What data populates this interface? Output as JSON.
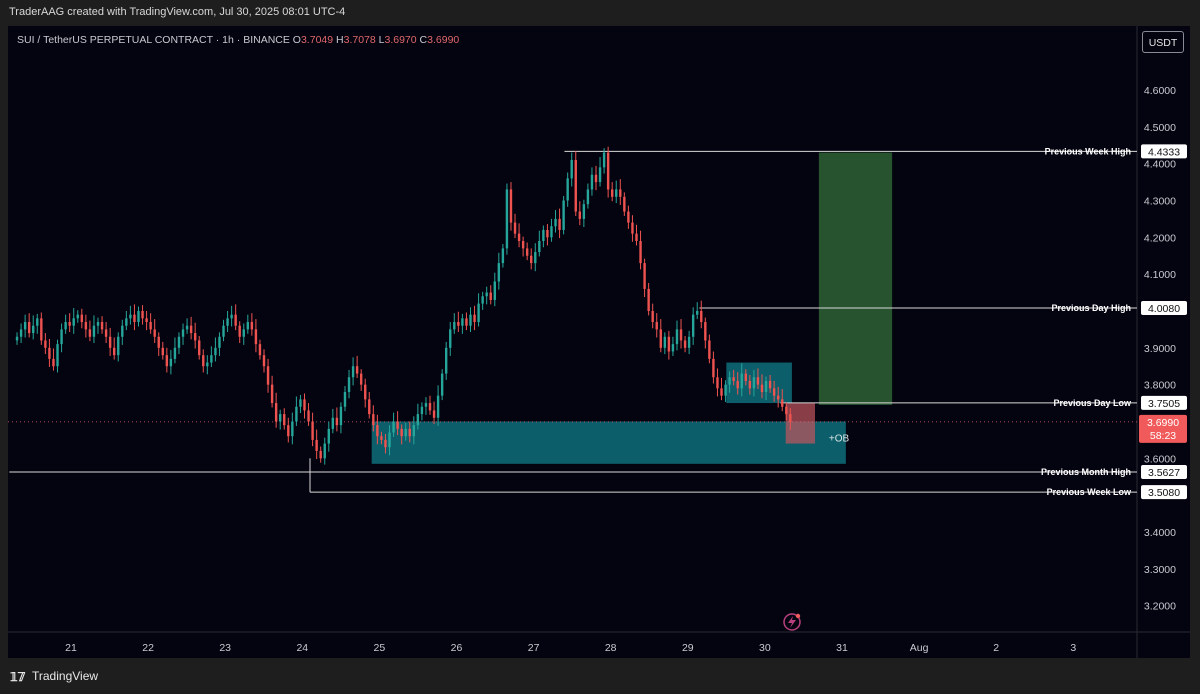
{
  "header": {
    "credit": "TraderAAG created with TradingView.com, Jul 30, 2025 08:01 UTC-4"
  },
  "legend": {
    "symbol": "SUI / TetherUS PERPETUAL CONTRACT · 1h · BINANCE",
    "o_label": "O",
    "o": "3.7049",
    "h_label": "H",
    "h": "3.7078",
    "l_label": "L",
    "l": "3.6970",
    "c_label": "C",
    "c": "3.6990"
  },
  "currency_button": "USDT",
  "footer": {
    "brand": "TradingView",
    "logo_icon": "tradingview-logo-icon"
  },
  "colors": {
    "up": "#26a69a",
    "down": "#ef5350",
    "background": "#040410",
    "ob_zone": "#0e6f7a",
    "target_zone": "#2b5d33",
    "price_tag": "#f05a5a"
  },
  "chart_data": {
    "type": "candlestick",
    "timeframe": "1h",
    "y_ticks": [
      "4.6000",
      "4.5000",
      "4.4000",
      "4.3000",
      "4.2000",
      "4.1000",
      "4.0000",
      "3.9000",
      "3.8000",
      "3.7000",
      "3.6000",
      "3.5000",
      "3.4000",
      "3.3000",
      "3.2000"
    ],
    "x_ticks": [
      "21",
      "22",
      "23",
      "24",
      "25",
      "26",
      "27",
      "28",
      "29",
      "30",
      "31",
      "Aug",
      "2",
      "3"
    ],
    "ylim": [
      3.15,
      4.65
    ],
    "close_series_hourly_approx": [
      3.93,
      3.95,
      3.97,
      3.94,
      3.96,
      3.98,
      3.92,
      3.9,
      3.87,
      3.85,
      3.91,
      3.95,
      3.97,
      3.96,
      3.98,
      3.99,
      3.97,
      3.95,
      3.93,
      3.96,
      3.97,
      3.95,
      3.93,
      3.9,
      3.88,
      3.93,
      3.96,
      3.98,
      3.99,
      3.97,
      4.0,
      3.98,
      3.97,
      3.95,
      3.93,
      3.9,
      3.88,
      3.85,
      3.87,
      3.9,
      3.93,
      3.95,
      3.96,
      3.94,
      3.92,
      3.88,
      3.85,
      3.86,
      3.88,
      3.9,
      3.93,
      3.96,
      3.98,
      3.99,
      3.96,
      3.93,
      3.95,
      3.97,
      3.95,
      3.91,
      3.88,
      3.85,
      3.8,
      3.75,
      3.7,
      3.72,
      3.69,
      3.66,
      3.7,
      3.74,
      3.76,
      3.73,
      3.7,
      3.65,
      3.62,
      3.6,
      3.64,
      3.68,
      3.71,
      3.69,
      3.74,
      3.78,
      3.82,
      3.85,
      3.83,
      3.8,
      3.76,
      3.72,
      3.69,
      3.66,
      3.65,
      3.63,
      3.67,
      3.7,
      3.68,
      3.66,
      3.68,
      3.66,
      3.69,
      3.72,
      3.74,
      3.75,
      3.73,
      3.71,
      3.77,
      3.83,
      3.9,
      3.95,
      3.97,
      3.96,
      3.98,
      3.96,
      3.99,
      3.97,
      4.02,
      4.04,
      4.05,
      4.03,
      4.08,
      4.13,
      4.17,
      4.33,
      4.24,
      4.21,
      4.19,
      4.17,
      4.15,
      4.13,
      4.16,
      4.19,
      4.22,
      4.2,
      4.23,
      4.25,
      4.22,
      4.3,
      4.36,
      4.41,
      4.27,
      4.25,
      4.29,
      4.33,
      4.37,
      4.35,
      4.39,
      4.43,
      4.33,
      4.31,
      4.33,
      4.31,
      4.27,
      4.24,
      4.21,
      4.19,
      4.13,
      4.06,
      4.0,
      3.97,
      3.95,
      3.9,
      3.93,
      3.89,
      3.91,
      3.95,
      3.92,
      3.9,
      3.93,
      3.99,
      4.0,
      3.97,
      3.92,
      3.87,
      3.82,
      3.79,
      3.77,
      3.8,
      3.82,
      3.81,
      3.79,
      3.83,
      3.81,
      3.79,
      3.82,
      3.8,
      3.78,
      3.81,
      3.79,
      3.77,
      3.76,
      3.74,
      3.72,
      3.699
    ],
    "levels": [
      {
        "label": "Previous Week High",
        "value": "4.4333"
      },
      {
        "label": "Previous Day High",
        "value": "4.0080"
      },
      {
        "label": "Previous Day Low",
        "value": "3.7505"
      },
      {
        "label": "Previous Month High",
        "value": "3.5627"
      },
      {
        "label": "Previous Week Low",
        "value": "3.5080"
      }
    ],
    "zones": [
      {
        "label": "+OB",
        "price_top": 3.7,
        "price_bottom": 3.585,
        "start_day": 24.9,
        "end_day": 31.05
      },
      {
        "label": "",
        "price_top": 3.86,
        "price_bottom": 3.75,
        "start_day": 29.5,
        "end_day": 30.35
      },
      {
        "label": "",
        "price_top": 4.43,
        "price_bottom": 3.745,
        "start_day": 30.7,
        "end_day": 31.65
      }
    ],
    "current_price": {
      "value": "3.6990",
      "countdown": "58:23"
    }
  }
}
